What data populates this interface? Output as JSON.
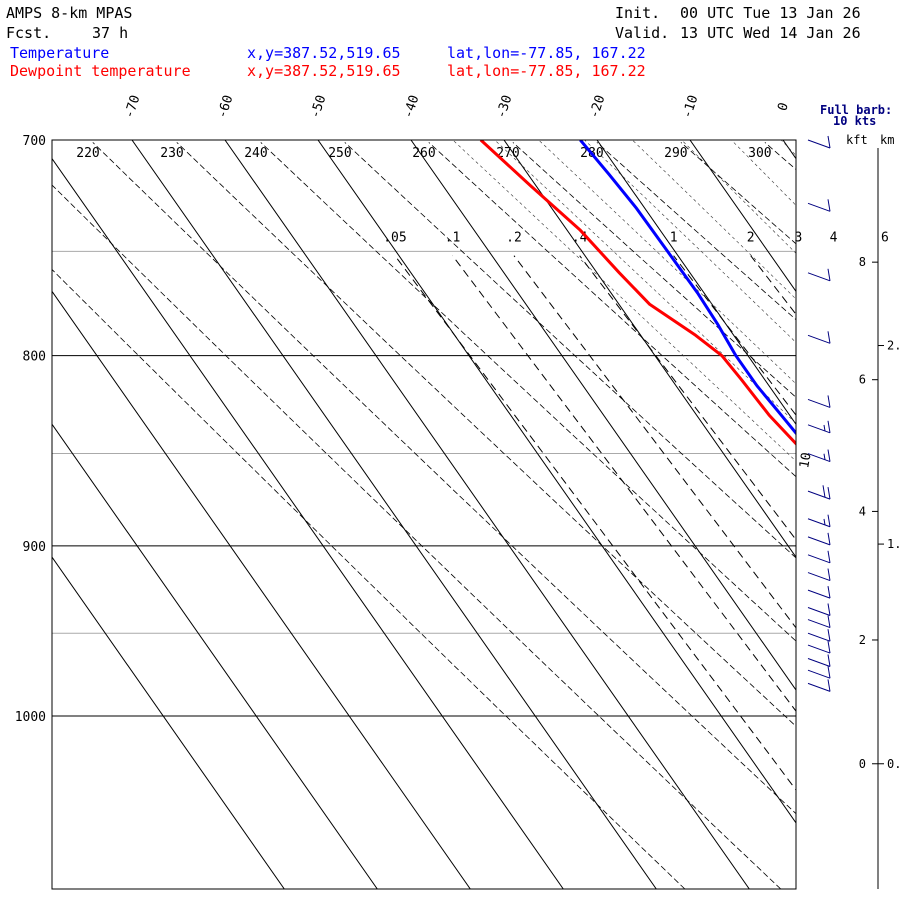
{
  "header": {
    "model": "AMPS 8-km MPAS",
    "fcst_label": "Fcst.",
    "fcst_value": "37 h",
    "init_label": "Init.",
    "init_value": "00 UTC Tue 13 Jan 26",
    "valid_label": "Valid.",
    "valid_value": "13 UTC Wed 14 Jan 26"
  },
  "legend": [
    {
      "name": "Temperature",
      "color": "#0000ff",
      "xy": "x,y=387.52,519.65",
      "latlon": "lat,lon=-77.85, 167.22"
    },
    {
      "name": "Dewpoint temperature",
      "color": "#ff0000",
      "xy": "x,y=387.52,519.65",
      "latlon": "lat,lon=-77.85, 167.22"
    }
  ],
  "barb_note": {
    "line1": "Full barb:",
    "line2": "10 kts"
  },
  "height_units": {
    "kft": "kft",
    "km": "km"
  },
  "chart_data": {
    "type": "line",
    "title": "Skew-T log-P sounding",
    "y_axis": {
      "label": "Pressure (hPa)",
      "range": [
        1040,
        700
      ],
      "ticks": [
        700,
        800,
        900,
        1000
      ],
      "scale": "log"
    },
    "isotherm_labels": [
      "-70",
      "-60",
      "-50",
      "-40",
      "-30",
      "-20",
      "-10",
      "0"
    ],
    "isotherm_values": [
      -70,
      -60,
      -50,
      -40,
      -30,
      -20,
      -10,
      0
    ],
    "dry_adiabat_labels": [
      "220",
      "230",
      "240",
      "250",
      "260",
      "270",
      "280",
      "290",
      "300"
    ],
    "dry_adiabat_thetas": [
      220,
      230,
      240,
      250,
      260,
      270,
      280,
      290,
      300
    ],
    "extra_dry_adiabat_thetas": [
      200,
      210,
      310,
      320
    ],
    "mixing_ratio_labels": [
      ".05",
      ".1",
      ".2",
      ".4",
      "1",
      "2",
      "3",
      "4",
      "6"
    ],
    "mixing_ratio_values": [
      0.05,
      0.1,
      0.2,
      0.4,
      1,
      2,
      3,
      4,
      6
    ],
    "moist_adiabat_thetaw": [
      260,
      264,
      268,
      272,
      276,
      280,
      284,
      288
    ],
    "series": [
      {
        "name": "Temperature",
        "color": "#0000ff",
        "points": [
          {
            "p": 980,
            "t": -17.2
          },
          {
            "p": 975,
            "t": -16.6
          },
          {
            "p": 965,
            "t": -16.1
          },
          {
            "p": 955,
            "t": -16.6
          },
          {
            "p": 940,
            "t": -17.6
          },
          {
            "p": 920,
            "t": -18.6
          },
          {
            "p": 905,
            "t": -19.3
          },
          {
            "p": 890,
            "t": -19.7
          },
          {
            "p": 870,
            "t": -20.2
          },
          {
            "p": 850,
            "t": -20.4
          },
          {
            "p": 830,
            "t": -20.9
          },
          {
            "p": 815,
            "t": -21.3
          },
          {
            "p": 800,
            "t": -21.3
          },
          {
            "p": 785,
            "t": -20.9
          },
          {
            "p": 770,
            "t": -20.7
          },
          {
            "p": 750,
            "t": -20.8
          },
          {
            "p": 730,
            "t": -20.9
          },
          {
            "p": 715,
            "t": -21.3
          },
          {
            "p": 700,
            "t": -21.8
          }
        ]
      },
      {
        "name": "Dewpoint temperature",
        "color": "#ff0000",
        "points": [
          {
            "p": 980,
            "t": -20.1
          },
          {
            "p": 973,
            "t": -20.4
          },
          {
            "p": 965,
            "t": -18.7
          },
          {
            "p": 955,
            "t": -20.2
          },
          {
            "p": 945,
            "t": -22.2
          },
          {
            "p": 935,
            "t": -21.3
          },
          {
            "p": 920,
            "t": -20.0
          },
          {
            "p": 905,
            "t": -19.5
          },
          {
            "p": 890,
            "t": -19.8
          },
          {
            "p": 870,
            "t": -20.6
          },
          {
            "p": 850,
            "t": -21.2
          },
          {
            "p": 830,
            "t": -22.2
          },
          {
            "p": 812,
            "t": -22.5
          },
          {
            "p": 800,
            "t": -22.8
          },
          {
            "p": 790,
            "t": -24.1
          },
          {
            "p": 775,
            "t": -26.7
          },
          {
            "p": 760,
            "t": -27.6
          },
          {
            "p": 740,
            "t": -28.6
          },
          {
            "p": 720,
            "t": -30.6
          },
          {
            "p": 700,
            "t": -32.5
          }
        ]
      }
    ],
    "wind_barbs": [
      {
        "p": 700,
        "spd": 10
      },
      {
        "p": 728,
        "spd": 10
      },
      {
        "p": 760,
        "spd": 10
      },
      {
        "p": 790,
        "spd": 10
      },
      {
        "p": 822,
        "spd": 10
      },
      {
        "p": 835,
        "spd": 15
      },
      {
        "p": 850,
        "spd": 15
      },
      {
        "p": 870,
        "spd": 20
      },
      {
        "p": 885,
        "spd": 15
      },
      {
        "p": 895,
        "spd": 10
      },
      {
        "p": 905,
        "spd": 10
      },
      {
        "p": 915,
        "spd": 10
      },
      {
        "p": 925,
        "spd": 10
      },
      {
        "p": 935,
        "spd": 10
      },
      {
        "p": 942,
        "spd": 10
      },
      {
        "p": 950,
        "spd": 10
      },
      {
        "p": 957,
        "spd": 10
      },
      {
        "p": 965,
        "spd": 10
      },
      {
        "p": 972,
        "spd": 10
      },
      {
        "p": 980,
        "spd": 10
      }
    ],
    "kft_ticks": [
      {
        "label": "0",
        "p": 1030
      },
      {
        "label": "2",
        "p": 954
      },
      {
        "label": "4",
        "p": 881
      },
      {
        "label": "6",
        "p": 812
      },
      {
        "label": "8",
        "p": 755
      }
    ],
    "km_ticks": [
      {
        "label": "0.",
        "p": 1030
      },
      {
        "label": "1.",
        "p": 899
      },
      {
        "label": "2.",
        "p": 795
      }
    ]
  }
}
